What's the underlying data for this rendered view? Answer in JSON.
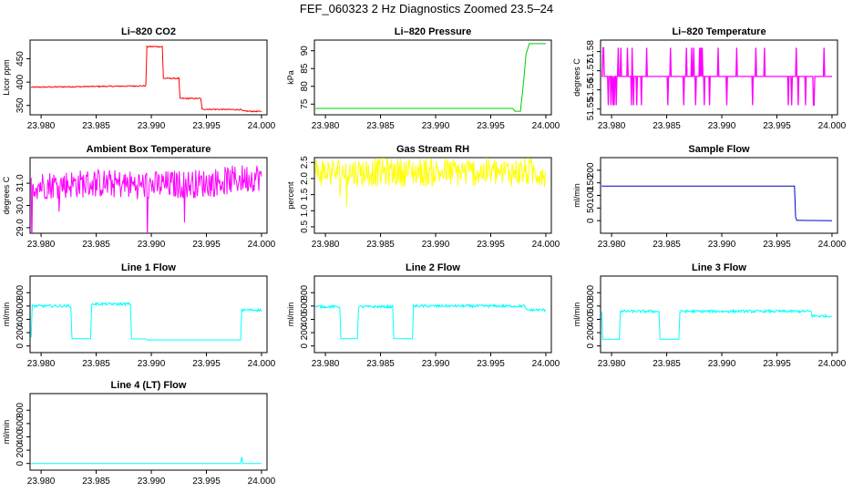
{
  "page_title": "FEF_060323  2 Hz Diagnostics Zoomed 23.5–24",
  "chart_data": [
    {
      "type": "line",
      "title": "Li–820 CO2",
      "ylabel": "Licor ppm",
      "color": "#ff0000",
      "xlim": [
        23.979,
        24.0005
      ],
      "ylim": [
        330,
        490
      ],
      "xticks": [
        "23.980",
        "23.985",
        "23.990",
        "23.995",
        "24.000"
      ],
      "yticks": [
        "350",
        "400",
        "450"
      ],
      "series": [
        {
          "name": "CO2",
          "x": [
            23.9791,
            23.9895,
            23.9896,
            23.991,
            23.9911,
            23.9925,
            23.9926,
            23.9945,
            23.9946,
            23.9982,
            23.9983,
            24.0
          ],
          "values": [
            389,
            392,
            476,
            476,
            408,
            408,
            365,
            365,
            342,
            341,
            338,
            337
          ]
        }
      ]
    },
    {
      "type": "line",
      "title": "Li–820 Pressure",
      "ylabel": "kPa",
      "color": "#00cc00",
      "xlim": [
        23.979,
        24.0005
      ],
      "ylim": [
        72,
        93
      ],
      "xticks": [
        "23.980",
        "23.985",
        "23.990",
        "23.995",
        "24.000"
      ],
      "yticks": [
        "75",
        "80",
        "85",
        "90"
      ],
      "series": [
        {
          "name": "Pressure",
          "x": [
            23.9791,
            23.997,
            23.9972,
            23.9977,
            23.9978,
            23.998,
            23.9982,
            23.9985,
            24.0
          ],
          "values": [
            73.8,
            73.8,
            73.0,
            73.0,
            76,
            82,
            89,
            92,
            92
          ]
        }
      ]
    },
    {
      "type": "line",
      "title": "Li–820 Temperature",
      "ylabel": "degrees C",
      "color": "#ff00ff",
      "xlim": [
        23.979,
        24.0005
      ],
      "ylim": [
        51.547,
        51.586
      ],
      "xticks": [
        "23.980",
        "23.985",
        "23.990",
        "23.995",
        "24.000"
      ],
      "yticks": [
        "51.55",
        "51.56",
        "51.57",
        "51.58"
      ],
      "series": [
        {
          "name": "Temperature",
          "x": [
            23.9791,
            24.0
          ],
          "values": [
            51.567,
            51.567
          ]
        }
      ]
    },
    {
      "type": "line",
      "title": "Ambient Box Temperature",
      "ylabel": "degrees C",
      "color": "#ff00ff",
      "xlim": [
        23.979,
        24.0005
      ],
      "ylim": [
        28.75,
        32.15
      ],
      "xticks": [
        "23.980",
        "23.985",
        "23.990",
        "23.995",
        "24.000"
      ],
      "yticks": [
        "29.0",
        "30.0",
        "31.0"
      ],
      "series": [
        {
          "name": "Ambient",
          "x": [
            23.9791,
            23.985,
            23.99,
            23.995,
            24.0
          ],
          "values": [
            30.9,
            31.0,
            30.9,
            31.0,
            31.3
          ]
        }
      ]
    },
    {
      "type": "line",
      "title": "Gas Stream RH",
      "ylabel": "percent",
      "color": "#ffff00",
      "xlim": [
        23.979,
        24.0005
      ],
      "ylim": [
        0.3,
        2.65
      ],
      "xticks": [
        "23.980",
        "23.985",
        "23.990",
        "23.995",
        "24.000"
      ],
      "yticks": [
        "0.5",
        "1.0",
        "1.5",
        "2.0",
        "2.5"
      ],
      "series": [
        {
          "name": "RH",
          "x": [
            23.9791,
            24.0
          ],
          "values": [
            2.2,
            2.2
          ]
        }
      ]
    },
    {
      "type": "line",
      "title": "Sample Flow",
      "ylabel": "ml/min",
      "color": "#0000cc",
      "xlim": [
        23.979,
        24.0005
      ],
      "ylim": [
        -50,
        250
      ],
      "xticks": [
        "23.980",
        "23.985",
        "23.990",
        "23.995",
        "24.000"
      ],
      "yticks": [
        "0",
        "50",
        "100",
        "150",
        "200"
      ],
      "series": [
        {
          "name": "Sample",
          "x": [
            23.9791,
            23.9966,
            23.9967,
            23.9968,
            24.0
          ],
          "values": [
            137,
            137,
            15,
            1,
            0
          ]
        }
      ]
    },
    {
      "type": "line",
      "title": "Line 1 Flow",
      "ylabel": "ml/min",
      "color": "#00ffff",
      "xlim": [
        23.979,
        24.0005
      ],
      "ylim": [
        -100,
        1050
      ],
      "xticks": [
        "23.980",
        "23.985",
        "23.990",
        "23.995",
        "24.000"
      ],
      "yticks": [
        "0",
        "200",
        "400",
        "600",
        "800"
      ],
      "series": [
        {
          "name": "Line 1",
          "x": [
            23.9791,
            23.9792,
            23.9827,
            23.9828,
            23.9845,
            23.9846,
            23.9881,
            23.9882,
            23.9895,
            23.9896,
            23.9981,
            23.9982,
            24.0
          ],
          "values": [
            130,
            600,
            600,
            110,
            110,
            630,
            630,
            105,
            105,
            90,
            90,
            540,
            540
          ]
        }
      ]
    },
    {
      "type": "line",
      "title": "Line 2 Flow",
      "ylabel": "ml/min",
      "color": "#00ffff",
      "xlim": [
        23.979,
        24.0005
      ],
      "ylim": [
        -100,
        1050
      ],
      "xticks": [
        "23.980",
        "23.985",
        "23.990",
        "23.995",
        "24.000"
      ],
      "yticks": [
        "0",
        "200",
        "400",
        "600",
        "800"
      ],
      "series": [
        {
          "name": "Line 2",
          "x": [
            23.9791,
            23.9813,
            23.9814,
            23.9829,
            23.983,
            23.9861,
            23.9862,
            23.9879,
            23.988,
            23.9981,
            23.9982,
            24.0
          ],
          "values": [
            590,
            590,
            110,
            110,
            590,
            590,
            110,
            110,
            600,
            600,
            540,
            540
          ]
        }
      ]
    },
    {
      "type": "line",
      "title": "Line 3 Flow",
      "ylabel": "ml/min",
      "color": "#00ffff",
      "xlim": [
        23.979,
        24.0005
      ],
      "ylim": [
        -100,
        1050
      ],
      "xticks": [
        "23.980",
        "23.985",
        "23.990",
        "23.995",
        "24.000"
      ],
      "yticks": [
        "0",
        "200",
        "400",
        "600",
        "800"
      ],
      "series": [
        {
          "name": "Line 3",
          "x": [
            23.9791,
            23.9792,
            23.9807,
            23.9808,
            23.9843,
            23.9844,
            23.9861,
            23.9862,
            23.9981,
            23.9982,
            24.0
          ],
          "values": [
            520,
            100,
            100,
            520,
            520,
            100,
            100,
            520,
            520,
            450,
            450
          ]
        }
      ]
    },
    {
      "type": "line",
      "title": "Line 4 (LT) Flow",
      "ylabel": "ml/min",
      "color": "#00ffff",
      "xlim": [
        23.979,
        24.0005
      ],
      "ylim": [
        -100,
        1050
      ],
      "xticks": [
        "23.980",
        "23.985",
        "23.990",
        "23.995",
        "24.000"
      ],
      "yticks": [
        "0",
        "200",
        "400",
        "600",
        "800"
      ],
      "series": [
        {
          "name": "Line 4",
          "x": [
            23.9791,
            23.9981,
            23.9982,
            23.9983,
            24.0
          ],
          "values": [
            0,
            0,
            100,
            0,
            0
          ]
        }
      ]
    }
  ]
}
